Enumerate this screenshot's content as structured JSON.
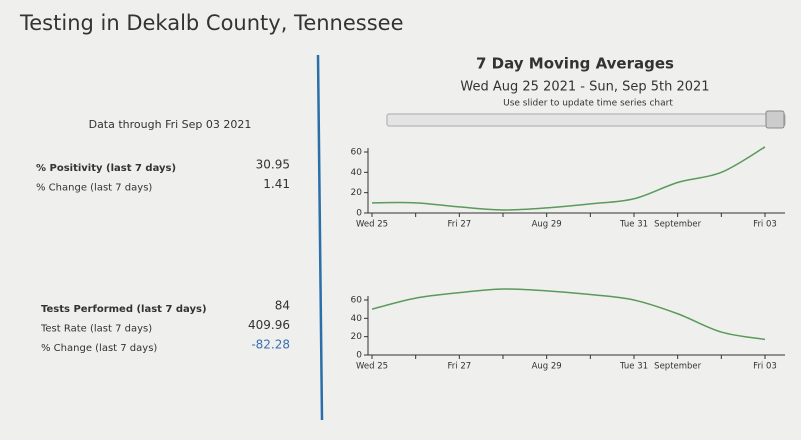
{
  "header": {
    "title": "Testing in Dekalb County, Tennessee"
  },
  "summary": {
    "data_through": "Data through Fri Sep 03 2021",
    "groups": [
      {
        "rows": [
          {
            "label": "% Positivity (last 7 days)",
            "value": 30.95,
            "bold": true
          },
          {
            "label": "% Change (last 7 days)",
            "value": 1.41
          }
        ]
      },
      {
        "rows": [
          {
            "label": "Tests Performed (last 7 days)",
            "value": 84,
            "bold": true
          },
          {
            "label": "Test Rate (last 7 days)",
            "value": 409.96
          },
          {
            "label": "% Change (last 7 days)",
            "value": -82.28,
            "color": "#3a6fb0"
          }
        ]
      }
    ]
  },
  "panel": {
    "title": "7 Day Moving Averages",
    "subtitle": "Wed Aug 25 2021 - Sun, Sep 5th 2021",
    "hint": "Use slider to update time series chart"
  },
  "charts": [
    {
      "type": "line",
      "categories": [
        "Wed 25",
        null,
        "Fri 27",
        null,
        "Aug 29",
        null,
        "Tue 31",
        "September",
        null,
        "Fri 03"
      ],
      "values": [
        10,
        10,
        6,
        3,
        5,
        9,
        14,
        30,
        40,
        65
      ],
      "color": "#5a9a5a",
      "ylim": [
        0,
        60
      ],
      "yticks": [
        0,
        20,
        40,
        60
      ]
    },
    {
      "type": "line",
      "categories": [
        "Wed 25",
        null,
        "Fri 27",
        null,
        "Aug 29",
        null,
        "Tue 31",
        "September",
        null,
        "Fri 03"
      ],
      "values": [
        50,
        62,
        68,
        72,
        70,
        66,
        60,
        45,
        25,
        17
      ],
      "color": "#5a9a5a",
      "ylim": [
        0,
        60
      ],
      "yticks": [
        0,
        20,
        40,
        60
      ]
    }
  ]
}
